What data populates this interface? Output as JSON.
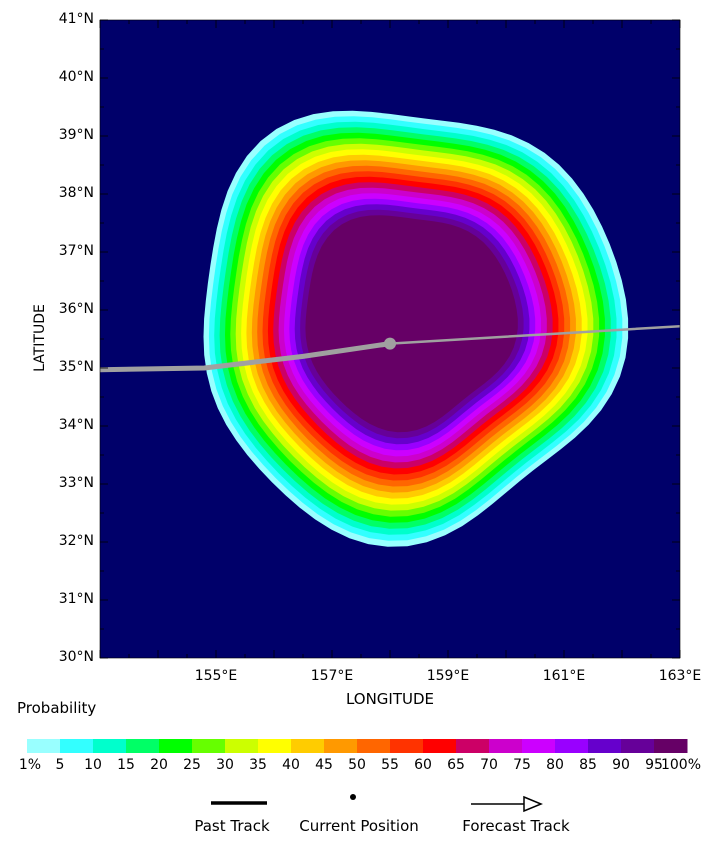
{
  "map": {
    "title_y": "LATITUDE",
    "title_x": "LONGITUDE",
    "lat_min": 30,
    "lat_max": 41,
    "lon_min": 153,
    "lon_max": 163,
    "lat_ticks": [
      "41°N",
      "40°N",
      "39°N",
      "38°N",
      "37°N",
      "36°N",
      "35°N",
      "34°N",
      "33°N",
      "32°N",
      "31°N",
      "30°N"
    ],
    "lon_ticks": [
      {
        "lon": 155,
        "label": "155°E"
      },
      {
        "lon": 157,
        "label": "157°E"
      },
      {
        "lon": 159,
        "label": "159°E"
      },
      {
        "lon": 161,
        "label": "161°E"
      },
      {
        "lon": 163,
        "label": "163°E"
      }
    ],
    "ocean_color": "#00006a",
    "storm_center": {
      "lon": 158.3,
      "lat": 35.85
    },
    "current_position": {
      "lon": 158.0,
      "lat": 35.42
    },
    "past_track": [
      [
        153,
        34.97
      ],
      [
        154.8,
        35.0
      ],
      [
        156.5,
        35.2
      ],
      [
        158.0,
        35.42
      ]
    ],
    "forecast_track": [
      [
        158.0,
        35.42
      ],
      [
        161.0,
        35.6
      ],
      [
        163,
        35.72
      ]
    ],
    "track_color": "#a0a0a0"
  },
  "legend": {
    "title": "Probability",
    "colors": [
      "#99ffff",
      "#33ffff",
      "#00ffcc",
      "#00ff66",
      "#00ff00",
      "#66ff00",
      "#ccff00",
      "#ffff00",
      "#ffcc00",
      "#ff9900",
      "#ff6600",
      "#ff3300",
      "#ff0000",
      "#cc0066",
      "#cc00cc",
      "#cc00ff",
      "#9900ff",
      "#6600cc",
      "#660099",
      "#660066"
    ],
    "labels": [
      "1%",
      "5",
      "10",
      "15",
      "20",
      "25",
      "30",
      "35",
      "40",
      "45",
      "50",
      "55",
      "60",
      "65",
      "70",
      "75",
      "80",
      "85",
      "90",
      "95",
      "100%"
    ],
    "past_track_label": "Past Track",
    "current_position_label": "Current Position",
    "forecast_track_label": "Forecast Track"
  }
}
